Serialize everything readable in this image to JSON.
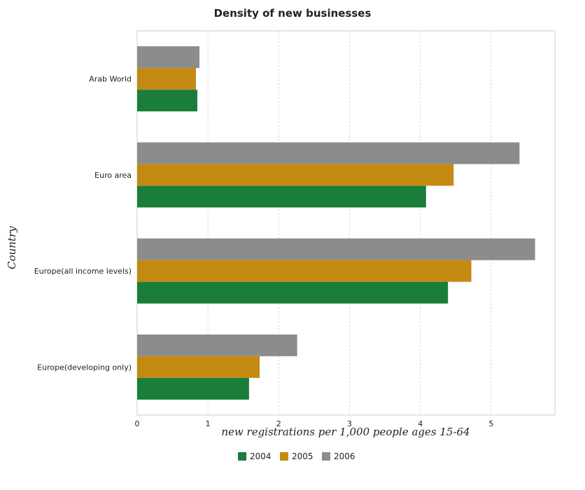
{
  "chart_data": {
    "type": "bar",
    "orientation": "horizontal",
    "title": "Density of new businesses",
    "xlabel": "new registrations per 1,000 people ages 15-64",
    "ylabel": "Country",
    "categories": [
      "Arab World",
      "Euro area",
      "Europe(all income levels)",
      "Europe(developing only)"
    ],
    "series": [
      {
        "name": "2004",
        "color": "#1a7d3c",
        "values": [
          0.85,
          4.08,
          4.39,
          1.58
        ]
      },
      {
        "name": "2005",
        "color": "#c48a12",
        "values": [
          0.83,
          4.47,
          4.72,
          1.73
        ]
      },
      {
        "name": "2006",
        "color": "#8c8c8c",
        "values": [
          0.88,
          5.4,
          5.62,
          2.26
        ]
      }
    ],
    "xlim": [
      0,
      5.9
    ],
    "xticks": [
      0,
      1,
      2,
      3,
      4,
      5
    ],
    "grid": true,
    "legend": "bottom-center"
  }
}
